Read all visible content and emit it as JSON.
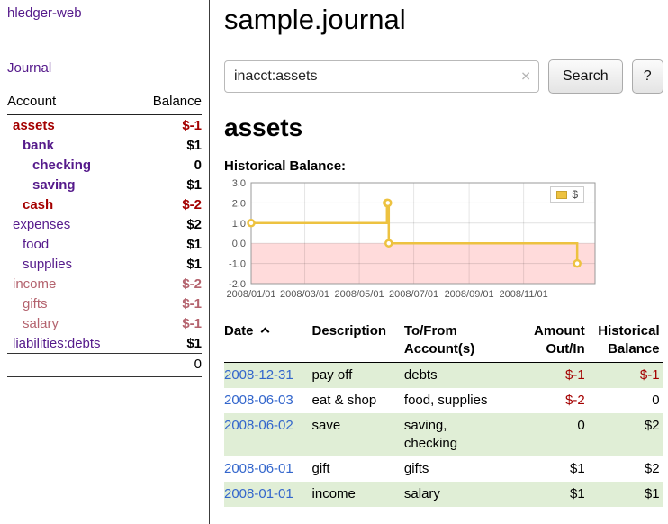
{
  "colors": {
    "purple": "#551a8b",
    "blue": "#3366cc",
    "red": "#a40000",
    "rose": "#b4636e",
    "stripe": "#e0eed6",
    "chart_yellow": "#edc240",
    "chart_negative_bg": "#ffdbdb"
  },
  "sidebar": {
    "app_title": "hledger-web",
    "journal_link": "Journal",
    "headers": {
      "account": "Account",
      "balance": "Balance"
    },
    "accounts": [
      {
        "name": "assets",
        "balance": "$-1",
        "depth": 0,
        "bold": true,
        "tone": "red",
        "balance_tone": "red"
      },
      {
        "name": "bank",
        "balance": "$1",
        "depth": 1,
        "bold": true,
        "tone": "purple",
        "balance_tone": "black"
      },
      {
        "name": "checking",
        "balance": "0",
        "depth": 2,
        "bold": true,
        "tone": "purple",
        "balance_tone": "black"
      },
      {
        "name": "saving",
        "balance": "$1",
        "depth": 2,
        "bold": true,
        "tone": "purple",
        "balance_tone": "black"
      },
      {
        "name": "cash",
        "balance": "$-2",
        "depth": 1,
        "bold": true,
        "tone": "red",
        "balance_tone": "red"
      },
      {
        "name": "expenses",
        "balance": "$2",
        "depth": 0,
        "bold": false,
        "tone": "purple",
        "balance_tone": "black"
      },
      {
        "name": "food",
        "balance": "$1",
        "depth": 1,
        "bold": false,
        "tone": "purple",
        "balance_tone": "black"
      },
      {
        "name": "supplies",
        "balance": "$1",
        "depth": 1,
        "bold": false,
        "tone": "purple",
        "balance_tone": "black"
      },
      {
        "name": "income",
        "balance": "$-2",
        "depth": 0,
        "bold": false,
        "tone": "rose",
        "balance_tone": "rose"
      },
      {
        "name": "gifts",
        "balance": "$-1",
        "depth": 1,
        "bold": false,
        "tone": "rose",
        "balance_tone": "rose"
      },
      {
        "name": "salary",
        "balance": "$-1",
        "depth": 1,
        "bold": false,
        "tone": "rose",
        "balance_tone": "rose"
      },
      {
        "name": "liabilities:debts",
        "balance": "$1",
        "depth": 0,
        "bold": false,
        "tone": "purple",
        "balance_tone": "black"
      }
    ],
    "total": "0"
  },
  "main": {
    "title": "sample.journal",
    "search": {
      "value": "inacct:assets",
      "clear_icon": "✕",
      "button_label": "Search",
      "help_label": "?"
    },
    "account_heading": "assets"
  },
  "chart_data": {
    "type": "line",
    "title": "Historical Balance:",
    "steps": true,
    "series": [
      {
        "name": "$",
        "color": "#edc240",
        "points": [
          {
            "date": "2008/01/01",
            "value": 1
          },
          {
            "date": "2008/06/01",
            "value": 2
          },
          {
            "date": "2008/06/02",
            "value": 2
          },
          {
            "date": "2008/06/03",
            "value": 0
          },
          {
            "date": "2008/12/31",
            "value": -1
          }
        ]
      }
    ],
    "y_min": -2,
    "y_max": 3,
    "y_tick_labels": [
      "3.0",
      "2.0",
      "1.0",
      "0.0",
      "-1.0",
      "-2.0"
    ],
    "x_tick_labels": [
      "2008/01/01",
      "2008/03/01",
      "2008/05/01",
      "2008/07/01",
      "2008/09/01",
      "2008/11/01"
    ],
    "legend": {
      "label": "$",
      "position": "top-right"
    },
    "grid": true,
    "negative_region_shaded": true
  },
  "register": {
    "columns": [
      {
        "lines": [
          "Date"
        ],
        "sortable": true,
        "sort": "asc"
      },
      {
        "lines": [
          "Description"
        ]
      },
      {
        "lines": [
          "To/From",
          "Account(s)"
        ]
      },
      {
        "lines": [
          "Amount",
          "Out/In"
        ]
      },
      {
        "lines": [
          "Historical",
          "Balance"
        ]
      }
    ],
    "rows": [
      {
        "date": "2008-12-31",
        "description": "pay off",
        "accounts": [
          "debts"
        ],
        "amount": "$-1",
        "balance": "$-1"
      },
      {
        "date": "2008-06-03",
        "description": "eat & shop",
        "accounts": [
          "food, supplies"
        ],
        "amount": "$-2",
        "balance": "0"
      },
      {
        "date": "2008-06-02",
        "description": "save",
        "accounts": [
          "saving,",
          "checking"
        ],
        "amount": "0",
        "balance": "$2"
      },
      {
        "date": "2008-06-01",
        "description": "gift",
        "accounts": [
          "gifts"
        ],
        "amount": "$1",
        "balance": "$2"
      },
      {
        "date": "2008-01-01",
        "description": "income",
        "accounts": [
          "salary"
        ],
        "amount": "$1",
        "balance": "$1"
      }
    ]
  }
}
